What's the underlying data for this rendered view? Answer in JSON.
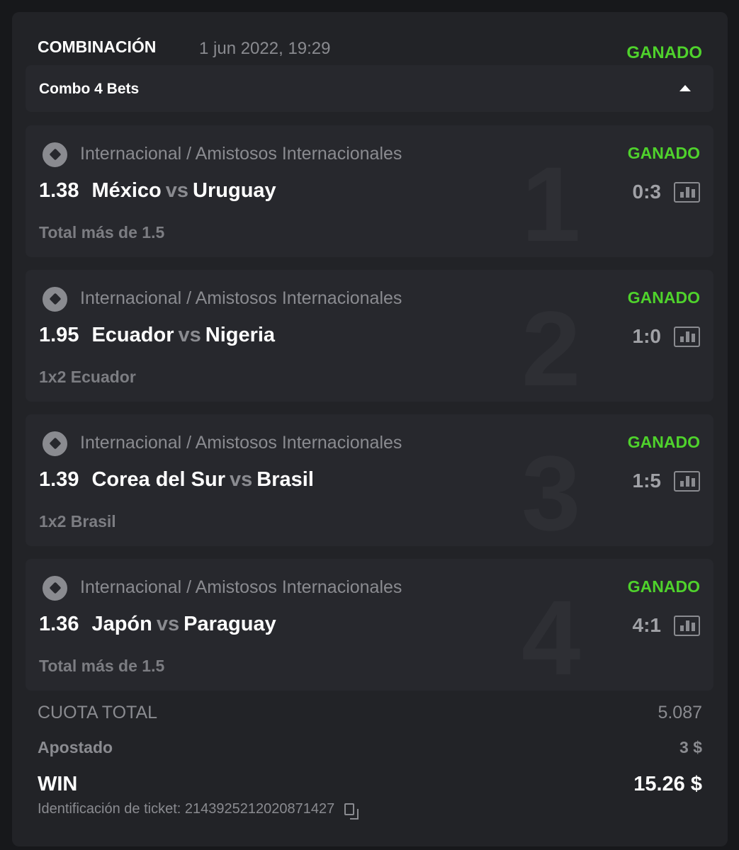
{
  "header": {
    "title": "COMBINACIÓN",
    "date": "1 jun 2022, 19:29",
    "status": "GANADO"
  },
  "combo": {
    "label": "Combo 4 Bets"
  },
  "colors": {
    "win": "#4fd22c"
  },
  "bets": [
    {
      "num": "1",
      "league": "Internacional / Amistosos Internacionales",
      "status": "GANADO",
      "odd": "1.38",
      "home": "México",
      "vs": "vs",
      "away": "Uruguay",
      "score": "0:3",
      "market": "Total más de 1.5"
    },
    {
      "num": "2",
      "league": "Internacional / Amistosos Internacionales",
      "status": "GANADO",
      "odd": "1.95",
      "home": "Ecuador",
      "vs": "vs",
      "away": "Nigeria",
      "score": "1:0",
      "market": "1x2 Ecuador"
    },
    {
      "num": "3",
      "league": "Internacional / Amistosos Internacionales",
      "status": "GANADO",
      "odd": "1.39",
      "home": "Corea del Sur",
      "vs": "vs",
      "away": "Brasil",
      "score": "1:5",
      "market": "1x2 Brasil"
    },
    {
      "num": "4",
      "league": "Internacional / Amistosos Internacionales",
      "status": "GANADO",
      "odd": "1.36",
      "home": "Japón",
      "vs": "vs",
      "away": "Paraguay",
      "score": "4:1",
      "market": "Total más de 1.5"
    }
  ],
  "summary": {
    "total_odds_label": "CUOTA TOTAL",
    "total_odds": "5.087",
    "stake_label": "Apostado",
    "stake": "3 $",
    "win_label": "WIN",
    "win": "15.26 $",
    "ticket_label": "Identificación de ticket: 2143925212020871427"
  }
}
